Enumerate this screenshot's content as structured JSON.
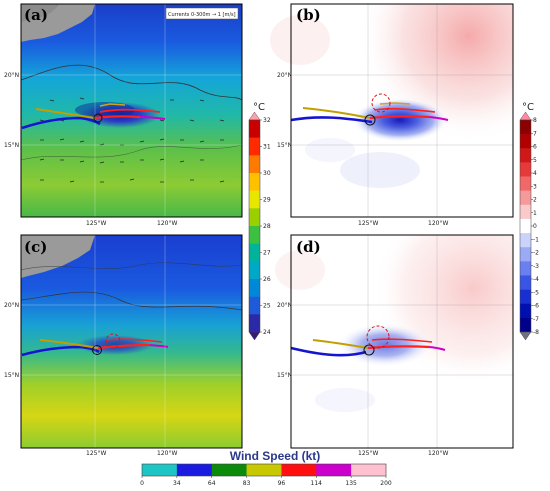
{
  "panels": [
    {
      "letter": "(a)",
      "kind": "sst"
    },
    {
      "letter": "(b)",
      "kind": "anomaly"
    },
    {
      "letter": "(c)",
      "kind": "sst"
    },
    {
      "letter": "(d)",
      "kind": "anomaly"
    }
  ],
  "current_legend": "Currents 0-300m → 1 [m/s]",
  "lat_labels": [
    "20°N",
    "15°N"
  ],
  "lon_labels": [
    "125°W",
    "120°W"
  ],
  "sst_colorbar": {
    "unit": "°C",
    "ticks": [
      "32",
      "31",
      "30",
      "29",
      "28",
      "27",
      "26",
      "25",
      "24"
    ],
    "colors": [
      "#ff9fb0",
      "#c80000",
      "#ff2a00",
      "#ff7a00",
      "#ffc000",
      "#e6e600",
      "#9ad000",
      "#3cc040",
      "#00b39a",
      "#00a8c8",
      "#0088d8",
      "#1f5ad8",
      "#2a2aa8",
      "#3a1a7a"
    ]
  },
  "anom_colorbar": {
    "unit": "°C",
    "ticks": [
      "8",
      "7",
      "6",
      "5",
      "4",
      "3",
      "2",
      "1",
      "0",
      "-1",
      "-2",
      "-3",
      "-4",
      "-5",
      "-6",
      "-7",
      "-8"
    ],
    "colors": [
      "#ff8aa8",
      "#8b0000",
      "#b00000",
      "#d01818",
      "#e63a3a",
      "#f06868",
      "#f59a9a",
      "#facaca",
      "#ffffff",
      "#cad4fa",
      "#9aaaf5",
      "#6a80f0",
      "#3a55e6",
      "#1830d0",
      "#0010b0",
      "#00008b",
      "#707080"
    ]
  },
  "wind_speed": {
    "title": "Wind Speed (kt)",
    "ticks": [
      "0",
      "34",
      "64",
      "83",
      "96",
      "114",
      "135",
      "200"
    ],
    "colors": [
      "#1fc4c4",
      "#1a1ae0",
      "#0c8a0c",
      "#c8c800",
      "#ff1010",
      "#cc00cc",
      "#ffc0d0"
    ]
  }
}
